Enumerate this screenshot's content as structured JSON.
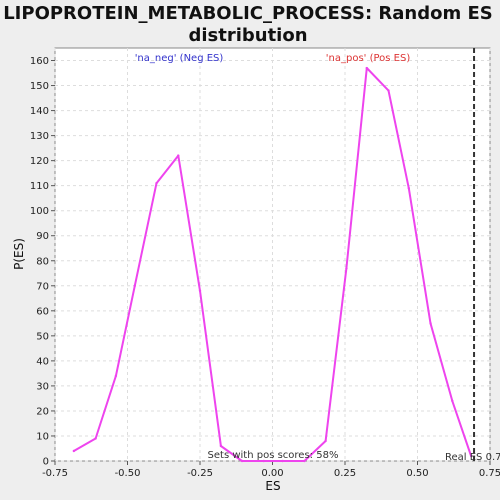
{
  "chart_data": {
    "type": "line",
    "title_lines": [
      "LIPOPROTEIN_METABOLIC_PROCESS: Random ES",
      "distribution"
    ],
    "xlabel": "ES",
    "ylabel": "P(ES)",
    "xlim": [
      -0.75,
      0.75
    ],
    "ylim": [
      0,
      165
    ],
    "x_ticks": [
      -0.75,
      -0.5,
      -0.25,
      0.0,
      0.25,
      0.5,
      0.75
    ],
    "x_tick_labels": [
      "-0.75",
      "-0.50",
      "-0.25",
      "0.00",
      "0.25",
      "0.50",
      "0.75"
    ],
    "y_ticks": [
      0,
      10,
      20,
      30,
      40,
      50,
      60,
      70,
      80,
      90,
      100,
      110,
      120,
      130,
      140,
      150,
      160
    ],
    "grid": true,
    "series": [
      {
        "color": "#ee44ee",
        "x": [
          -0.685,
          -0.61,
          -0.54,
          -0.475,
          -0.4,
          -0.325,
          -0.25,
          -0.178,
          -0.105,
          -0.03,
          0.035,
          0.11,
          0.183,
          0.255,
          0.325,
          0.4,
          0.47,
          0.545,
          0.62,
          0.685
        ],
        "y": [
          4,
          9,
          34,
          70,
          111,
          122,
          68,
          6,
          0,
          0,
          0,
          0,
          8,
          77,
          157,
          148,
          109,
          55,
          24,
          2
        ]
      }
    ],
    "annotations": {
      "neg_label": "'na_neg' (Neg ES)",
      "neg_color": "#3333cc",
      "pos_label": "'na_pos' (Pos ES)",
      "pos_color": "#dd3333",
      "pos_scores_text": "Sets with pos scores: 58%",
      "real_es_text": "Real ES 0.7",
      "real_es_value": 0.695
    }
  }
}
